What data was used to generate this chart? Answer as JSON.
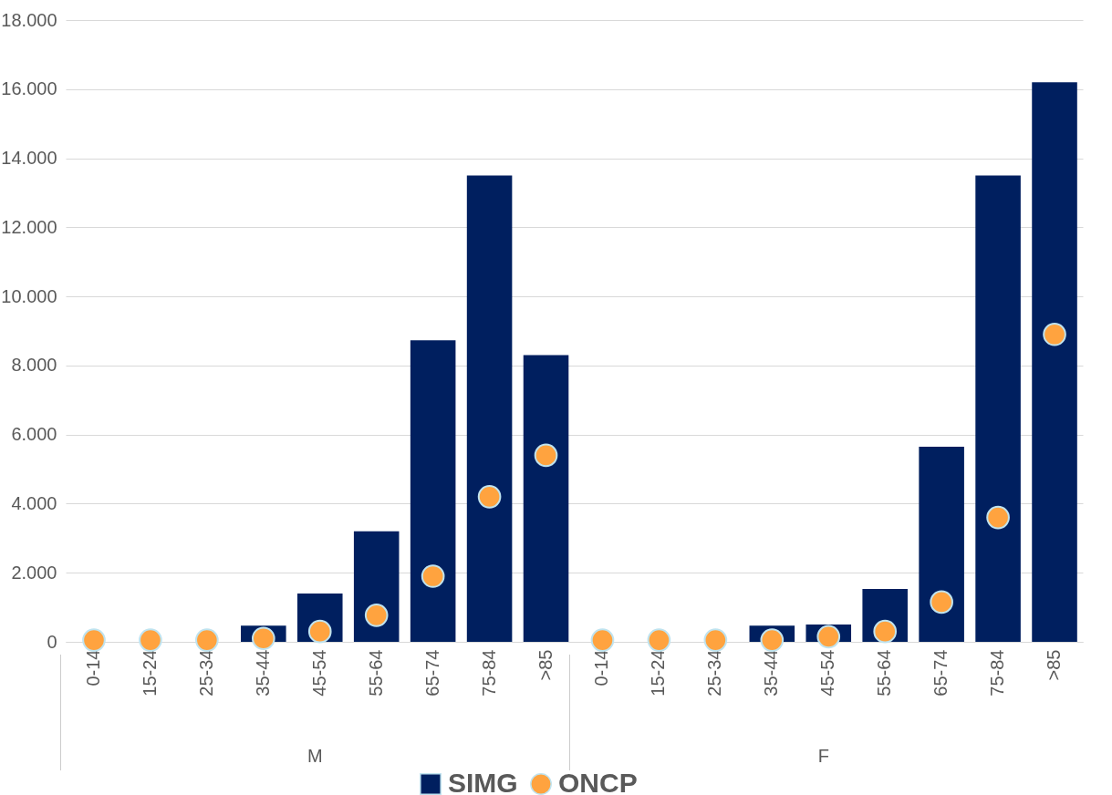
{
  "chart_data": {
    "type": "bar",
    "categories": [
      "0-14",
      "15-24",
      "25-34",
      "35-44",
      "45-54",
      "55-64",
      "65-74",
      "75-84",
      ">85",
      "0-14",
      "15-24",
      "25-34",
      "35-44",
      "45-54",
      "55-64",
      "65-74",
      "75-84",
      ">85"
    ],
    "series": [
      {
        "name": "SIMG",
        "type": "bar",
        "color": "#001f5f",
        "values": [
          0,
          0,
          0,
          470,
          1400,
          3200,
          8730,
          13500,
          8300,
          0,
          0,
          0,
          470,
          500,
          1530,
          5650,
          13500,
          16200
        ]
      },
      {
        "name": "ONCP",
        "type": "scatter",
        "color": "#ffa33f",
        "marker": "circle",
        "values": [
          50,
          50,
          50,
          100,
          300,
          770,
          1900,
          4200,
          5400,
          50,
          50,
          50,
          50,
          150,
          300,
          1150,
          3600,
          8900
        ]
      }
    ],
    "ylim": [
      0,
      18000
    ],
    "yticks": [
      {
        "value": 0,
        "label": "0"
      },
      {
        "value": 2000,
        "label": "2.000"
      },
      {
        "value": 4000,
        "label": "4.000"
      },
      {
        "value": 6000,
        "label": "6.000"
      },
      {
        "value": 8000,
        "label": "8.000"
      },
      {
        "value": 10000,
        "label": "10.000"
      },
      {
        "value": 12000,
        "label": "12.000"
      },
      {
        "value": 14000,
        "label": "14.000"
      },
      {
        "value": 16000,
        "label": "16.000"
      },
      {
        "value": 18000,
        "label": "18.000"
      }
    ],
    "grid": "y",
    "legend": "bottom",
    "annotations": [
      "M",
      "F"
    ]
  }
}
